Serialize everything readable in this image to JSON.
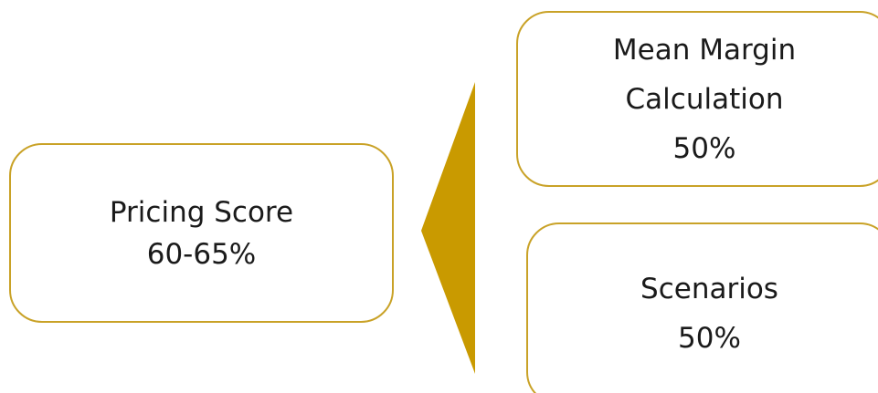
{
  "diagram": {
    "accent_color": "#c9a227",
    "connector_color": "#c99a00",
    "nodes": {
      "pricing_score": {
        "title": "Pricing Score",
        "weight": "60-65%"
      },
      "mean_margin": {
        "title_line1": "Mean Margin",
        "title_line2": "Calculation",
        "weight": "50%"
      },
      "scenarios": {
        "title": "Scenarios",
        "weight": "50%"
      }
    }
  }
}
